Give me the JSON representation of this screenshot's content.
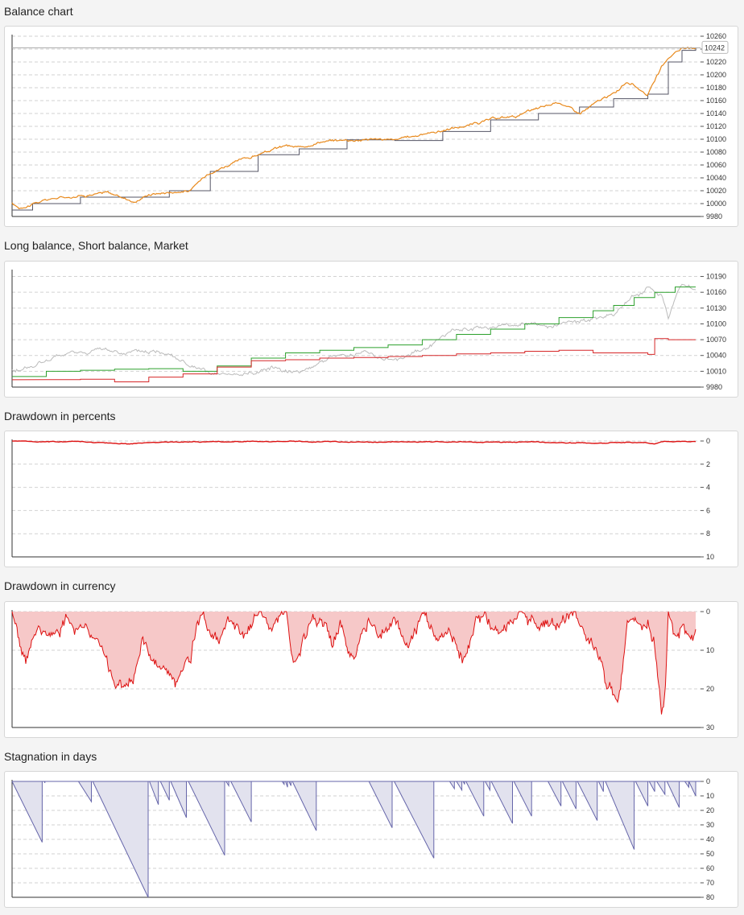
{
  "sections": {
    "balance": {
      "title": "Balance chart"
    },
    "long_short": {
      "title": "Long balance, Short balance, Market"
    },
    "dd_percent": {
      "title": "Drawdown in percents"
    },
    "dd_currency": {
      "title": "Drawdown in currency"
    },
    "stagnation": {
      "title": "Stagnation in days"
    }
  },
  "colors": {
    "balance_line": "#e8891c",
    "balance_step": "#555566",
    "long": "#2ca02c",
    "short": "#d62728",
    "market": "#bbbbbb",
    "drawdown": "#dd1111",
    "drawdown_fill": "#f6c8c8",
    "stagnation_line": "#6666aa",
    "stagnation_fill": "#e2e2ee"
  },
  "chart_data": [
    {
      "id": "balance",
      "type": "line",
      "title": "Balance chart",
      "ylim": [
        9980,
        10260
      ],
      "yticks": [
        9980,
        10000,
        10020,
        10040,
        10060,
        10080,
        10100,
        10120,
        10140,
        10160,
        10180,
        10200,
        10220,
        10240,
        10260
      ],
      "current_value_label": "10242",
      "current_value": 10242,
      "series": [
        {
          "role": "balance",
          "color_key": "balance_line",
          "x": [
            0,
            0.01,
            0.03,
            0.06,
            0.1,
            0.14,
            0.18,
            0.2,
            0.23,
            0.26,
            0.29,
            0.32,
            0.36,
            0.4,
            0.42,
            0.45,
            0.49,
            0.53,
            0.56,
            0.6,
            0.63,
            0.66,
            0.7,
            0.74,
            0.77,
            0.8,
            0.83,
            0.86,
            0.88,
            0.9,
            0.93,
            0.94,
            0.95,
            0.96,
            0.97,
            0.98,
            0.99,
            1.0
          ],
          "y": [
            10000,
            9993,
            10000,
            10008,
            10013,
            10017,
            10003,
            10015,
            10018,
            10020,
            10050,
            10062,
            10076,
            10090,
            10086,
            10097,
            10099,
            10101,
            10098,
            10108,
            10114,
            10120,
            10130,
            10137,
            10147,
            10158,
            10140,
            10160,
            10170,
            10190,
            10170,
            10190,
            10210,
            10225,
            10235,
            10242,
            10240,
            10242
          ]
        },
        {
          "role": "balance-step",
          "color_key": "balance_step",
          "x": [
            0,
            0.03,
            0.1,
            0.18,
            0.23,
            0.29,
            0.36,
            0.42,
            0.49,
            0.56,
            0.63,
            0.7,
            0.77,
            0.83,
            0.88,
            0.93,
            0.96,
            0.98,
            1.0
          ],
          "y": [
            9990,
            10000,
            10010,
            10010,
            10020,
            10050,
            10076,
            10085,
            10099,
            10098,
            10112,
            10130,
            10140,
            10150,
            10163,
            10170,
            10220,
            10238,
            10242
          ]
        }
      ]
    },
    {
      "id": "long_short",
      "type": "line",
      "title": "Long balance, Short balance, Market",
      "ylim": [
        9980,
        10200
      ],
      "yticks": [
        9980,
        10010,
        10040,
        10070,
        10100,
        10130,
        10160,
        10190
      ],
      "series": [
        {
          "role": "market",
          "color_key": "market",
          "x": [
            0,
            0.03,
            0.08,
            0.13,
            0.18,
            0.23,
            0.26,
            0.29,
            0.33,
            0.38,
            0.42,
            0.47,
            0.52,
            0.56,
            0.6,
            0.64,
            0.68,
            0.72,
            0.76,
            0.8,
            0.84,
            0.88,
            0.91,
            0.93,
            0.95,
            0.96,
            0.97,
            0.98,
            1.0
          ],
          "y": [
            10010,
            10020,
            10042,
            10050,
            10045,
            10048,
            10020,
            10002,
            10000,
            10018,
            10010,
            10040,
            10045,
            10030,
            10050,
            10085,
            10090,
            10095,
            10100,
            10095,
            10105,
            10120,
            10155,
            10170,
            10155,
            10110,
            10150,
            10175,
            10165
          ]
        },
        {
          "role": "long",
          "color_key": "long",
          "x": [
            0,
            0.05,
            0.1,
            0.15,
            0.2,
            0.25,
            0.3,
            0.35,
            0.4,
            0.45,
            0.5,
            0.55,
            0.6,
            0.65,
            0.7,
            0.75,
            0.8,
            0.85,
            0.88,
            0.91,
            0.94,
            0.97,
            1.0
          ],
          "y": [
            10000,
            10010,
            10012,
            10014,
            10015,
            10010,
            10020,
            10035,
            10045,
            10050,
            10055,
            10060,
            10070,
            10080,
            10090,
            10100,
            10112,
            10125,
            10135,
            10150,
            10160,
            10170,
            10170
          ]
        },
        {
          "role": "short",
          "color_key": "short",
          "x": [
            0,
            0.05,
            0.1,
            0.15,
            0.2,
            0.25,
            0.3,
            0.35,
            0.4,
            0.45,
            0.5,
            0.55,
            0.6,
            0.65,
            0.7,
            0.75,
            0.8,
            0.85,
            0.93,
            0.94,
            0.96,
            1.0
          ],
          "y": [
            9994,
            9994,
            9995,
            9990,
            9999,
            10005,
            10018,
            10030,
            10032,
            10035,
            10036,
            10038,
            10040,
            10043,
            10045,
            10048,
            10050,
            10045,
            10042,
            10072,
            10070,
            10070
          ]
        }
      ]
    },
    {
      "id": "dd_percent",
      "type": "area",
      "title": "Drawdown in percents",
      "ylim": [
        0,
        10
      ],
      "inverted": true,
      "yticks": [
        0,
        2,
        4,
        6,
        8,
        10
      ],
      "series": [
        {
          "role": "drawdown-percent",
          "color_key": "drawdown",
          "x": [
            0,
            0.1,
            0.17,
            0.2,
            0.3,
            0.4,
            0.5,
            0.6,
            0.7,
            0.8,
            0.87,
            0.9,
            0.94,
            0.95,
            0.96,
            1.0
          ],
          "y": [
            0,
            0.1,
            0.2,
            0.1,
            0.05,
            0.05,
            0.1,
            0.05,
            0.1,
            0.1,
            0.2,
            0.1,
            0.25,
            0.1,
            0.05,
            0.05
          ]
        }
      ]
    },
    {
      "id": "dd_currency",
      "type": "area",
      "title": "Drawdown in currency",
      "ylim": [
        0,
        30
      ],
      "inverted": true,
      "yticks": [
        0,
        10,
        20,
        30
      ],
      "series": [
        {
          "role": "drawdown-currency",
          "color_key": "drawdown",
          "x": [
            0,
            0.01,
            0.02,
            0.04,
            0.06,
            0.08,
            0.11,
            0.13,
            0.15,
            0.16,
            0.18,
            0.19,
            0.2,
            0.22,
            0.24,
            0.26,
            0.27,
            0.28,
            0.3,
            0.32,
            0.34,
            0.36,
            0.38,
            0.4,
            0.41,
            0.42,
            0.44,
            0.46,
            0.47,
            0.48,
            0.5,
            0.52,
            0.54,
            0.56,
            0.58,
            0.6,
            0.62,
            0.64,
            0.66,
            0.68,
            0.7,
            0.72,
            0.74,
            0.76,
            0.8,
            0.82,
            0.84,
            0.86,
            0.87,
            0.88,
            0.89,
            0.9,
            0.92,
            0.93,
            0.94,
            0.95,
            0.955,
            0.96,
            0.97,
            0.98,
            0.99,
            1.0
          ],
          "y": [
            0,
            6,
            12,
            3,
            7,
            2,
            5,
            12,
            19,
            20,
            15,
            5,
            10,
            15,
            18,
            12,
            4,
            1,
            8,
            3,
            7,
            1,
            4,
            0,
            13,
            12,
            1,
            3,
            8,
            2,
            12,
            2,
            6,
            1,
            9,
            1,
            6,
            3,
            12,
            2,
            4,
            6,
            1,
            3,
            4,
            1,
            6,
            11,
            18,
            22,
            20,
            4,
            5,
            1,
            8,
            27,
            22,
            0,
            5,
            2,
            8,
            5
          ]
        }
      ]
    },
    {
      "id": "stagnation",
      "type": "area",
      "title": "Stagnation in days",
      "ylim": [
        0,
        80
      ],
      "inverted": true,
      "yticks": [
        0,
        10,
        20,
        30,
        40,
        50,
        60,
        70,
        80
      ],
      "series": [
        {
          "role": "stagnation-days",
          "color_key": "stagnation_line",
          "events": [
            {
              "start": 0.0,
              "end": 0.044,
              "peak": 42
            },
            {
              "start": 0.047,
              "end": 0.048,
              "peak": 1
            },
            {
              "start": 0.097,
              "end": 0.116,
              "peak": 14
            },
            {
              "start": 0.118,
              "end": 0.199,
              "peak": 80
            },
            {
              "start": 0.201,
              "end": 0.214,
              "peak": 16
            },
            {
              "start": 0.217,
              "end": 0.23,
              "peak": 13
            },
            {
              "start": 0.232,
              "end": 0.255,
              "peak": 25
            },
            {
              "start": 0.258,
              "end": 0.311,
              "peak": 51
            },
            {
              "start": 0.313,
              "end": 0.317,
              "peak": 3
            },
            {
              "start": 0.32,
              "end": 0.35,
              "peak": 28
            },
            {
              "start": 0.395,
              "end": 0.398,
              "peak": 2
            },
            {
              "start": 0.4,
              "end": 0.403,
              "peak": 4
            },
            {
              "start": 0.405,
              "end": 0.408,
              "peak": 3
            },
            {
              "start": 0.41,
              "end": 0.445,
              "peak": 34
            },
            {
              "start": 0.522,
              "end": 0.556,
              "peak": 32
            },
            {
              "start": 0.559,
              "end": 0.617,
              "peak": 53
            },
            {
              "start": 0.64,
              "end": 0.647,
              "peak": 5
            },
            {
              "start": 0.65,
              "end": 0.658,
              "peak": 6
            },
            {
              "start": 0.66,
              "end": 0.662,
              "peak": 2
            },
            {
              "start": 0.664,
              "end": 0.69,
              "peak": 24
            },
            {
              "start": 0.692,
              "end": 0.699,
              "peak": 6
            },
            {
              "start": 0.701,
              "end": 0.732,
              "peak": 29
            },
            {
              "start": 0.734,
              "end": 0.76,
              "peak": 24
            },
            {
              "start": 0.784,
              "end": 0.803,
              "peak": 17
            },
            {
              "start": 0.805,
              "end": 0.825,
              "peak": 19
            },
            {
              "start": 0.827,
              "end": 0.856,
              "peak": 27
            },
            {
              "start": 0.858,
              "end": 0.865,
              "peak": 7
            },
            {
              "start": 0.868,
              "end": 0.91,
              "peak": 47
            },
            {
              "start": 0.912,
              "end": 0.93,
              "peak": 17
            },
            {
              "start": 0.932,
              "end": 0.94,
              "peak": 7
            },
            {
              "start": 0.943,
              "end": 0.955,
              "peak": 9
            },
            {
              "start": 0.958,
              "end": 0.976,
              "peak": 18
            },
            {
              "start": 0.984,
              "end": 0.99,
              "peak": 4
            },
            {
              "start": 0.992,
              "end": 0.998,
              "peak": 5
            },
            {
              "start": 1.0,
              "end": 1.0,
              "peak": 0
            },
            {
              "start": 0.99,
              "end": 1.0,
              "peak": 10
            }
          ]
        }
      ]
    }
  ]
}
